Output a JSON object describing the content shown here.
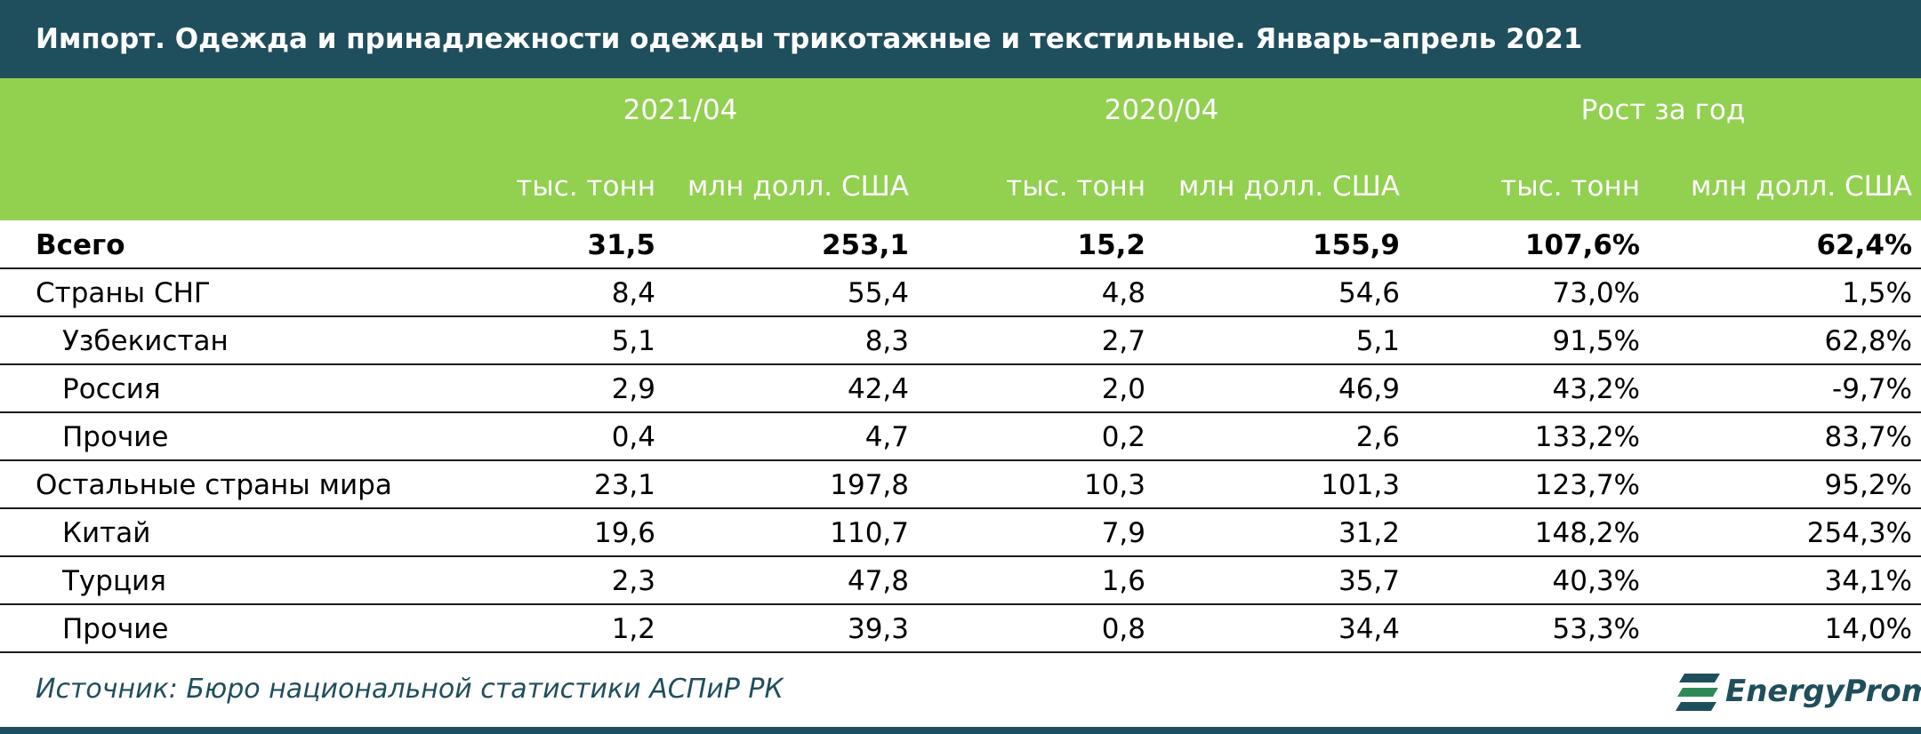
{
  "title": "Импорт. Одежда и принадлежности одежды трикотажные и текстильные. Январь–апрель 2021",
  "header": {
    "groups": [
      "2021/04",
      "2020/04",
      "Рост за год"
    ],
    "units": [
      "тыс. тонн",
      "млн долл. США",
      "тыс. тонн",
      "млн долл. США",
      "тыс. тонн",
      "млн долл. США"
    ]
  },
  "table": {
    "rows": [
      {
        "label": "Всего",
        "cells": [
          "31,5",
          "253,1",
          "15,2",
          "155,9",
          "107,6%",
          "62,4%"
        ]
      },
      {
        "label": "Страны СНГ",
        "cells": [
          "8,4",
          "55,4",
          "4,8",
          "54,6",
          "73,0%",
          "1,5%"
        ]
      },
      {
        "label": "Узбекистан",
        "cells": [
          "5,1",
          "8,3",
          "2,7",
          "5,1",
          "91,5%",
          "62,8%"
        ]
      },
      {
        "label": "Россия",
        "cells": [
          "2,9",
          "42,4",
          "2,0",
          "46,9",
          "43,2%",
          "-9,7%"
        ]
      },
      {
        "label": "Прочие",
        "cells": [
          "0,4",
          "4,7",
          "0,2",
          "2,6",
          "133,2%",
          "83,7%"
        ]
      },
      {
        "label": "Остальные страны мира",
        "cells": [
          "23,1",
          "197,8",
          "10,3",
          "101,3",
          "123,7%",
          "95,2%"
        ]
      },
      {
        "label": "Китай",
        "cells": [
          "19,6",
          "110,7",
          "7,9",
          "31,2",
          "148,2%",
          "254,3%"
        ]
      },
      {
        "label": "Турция",
        "cells": [
          "2,3",
          "47,8",
          "1,6",
          "35,7",
          "40,3%",
          "34,1%"
        ]
      },
      {
        "label": "Прочие",
        "cells": [
          "1,2",
          "39,3",
          "0,8",
          "34,4",
          "53,3%",
          "14,0%"
        ]
      }
    ]
  },
  "footer": {
    "source": "Источник: Бюро национальной статистики АСПиР РК",
    "logo": "EnergyProm"
  }
}
